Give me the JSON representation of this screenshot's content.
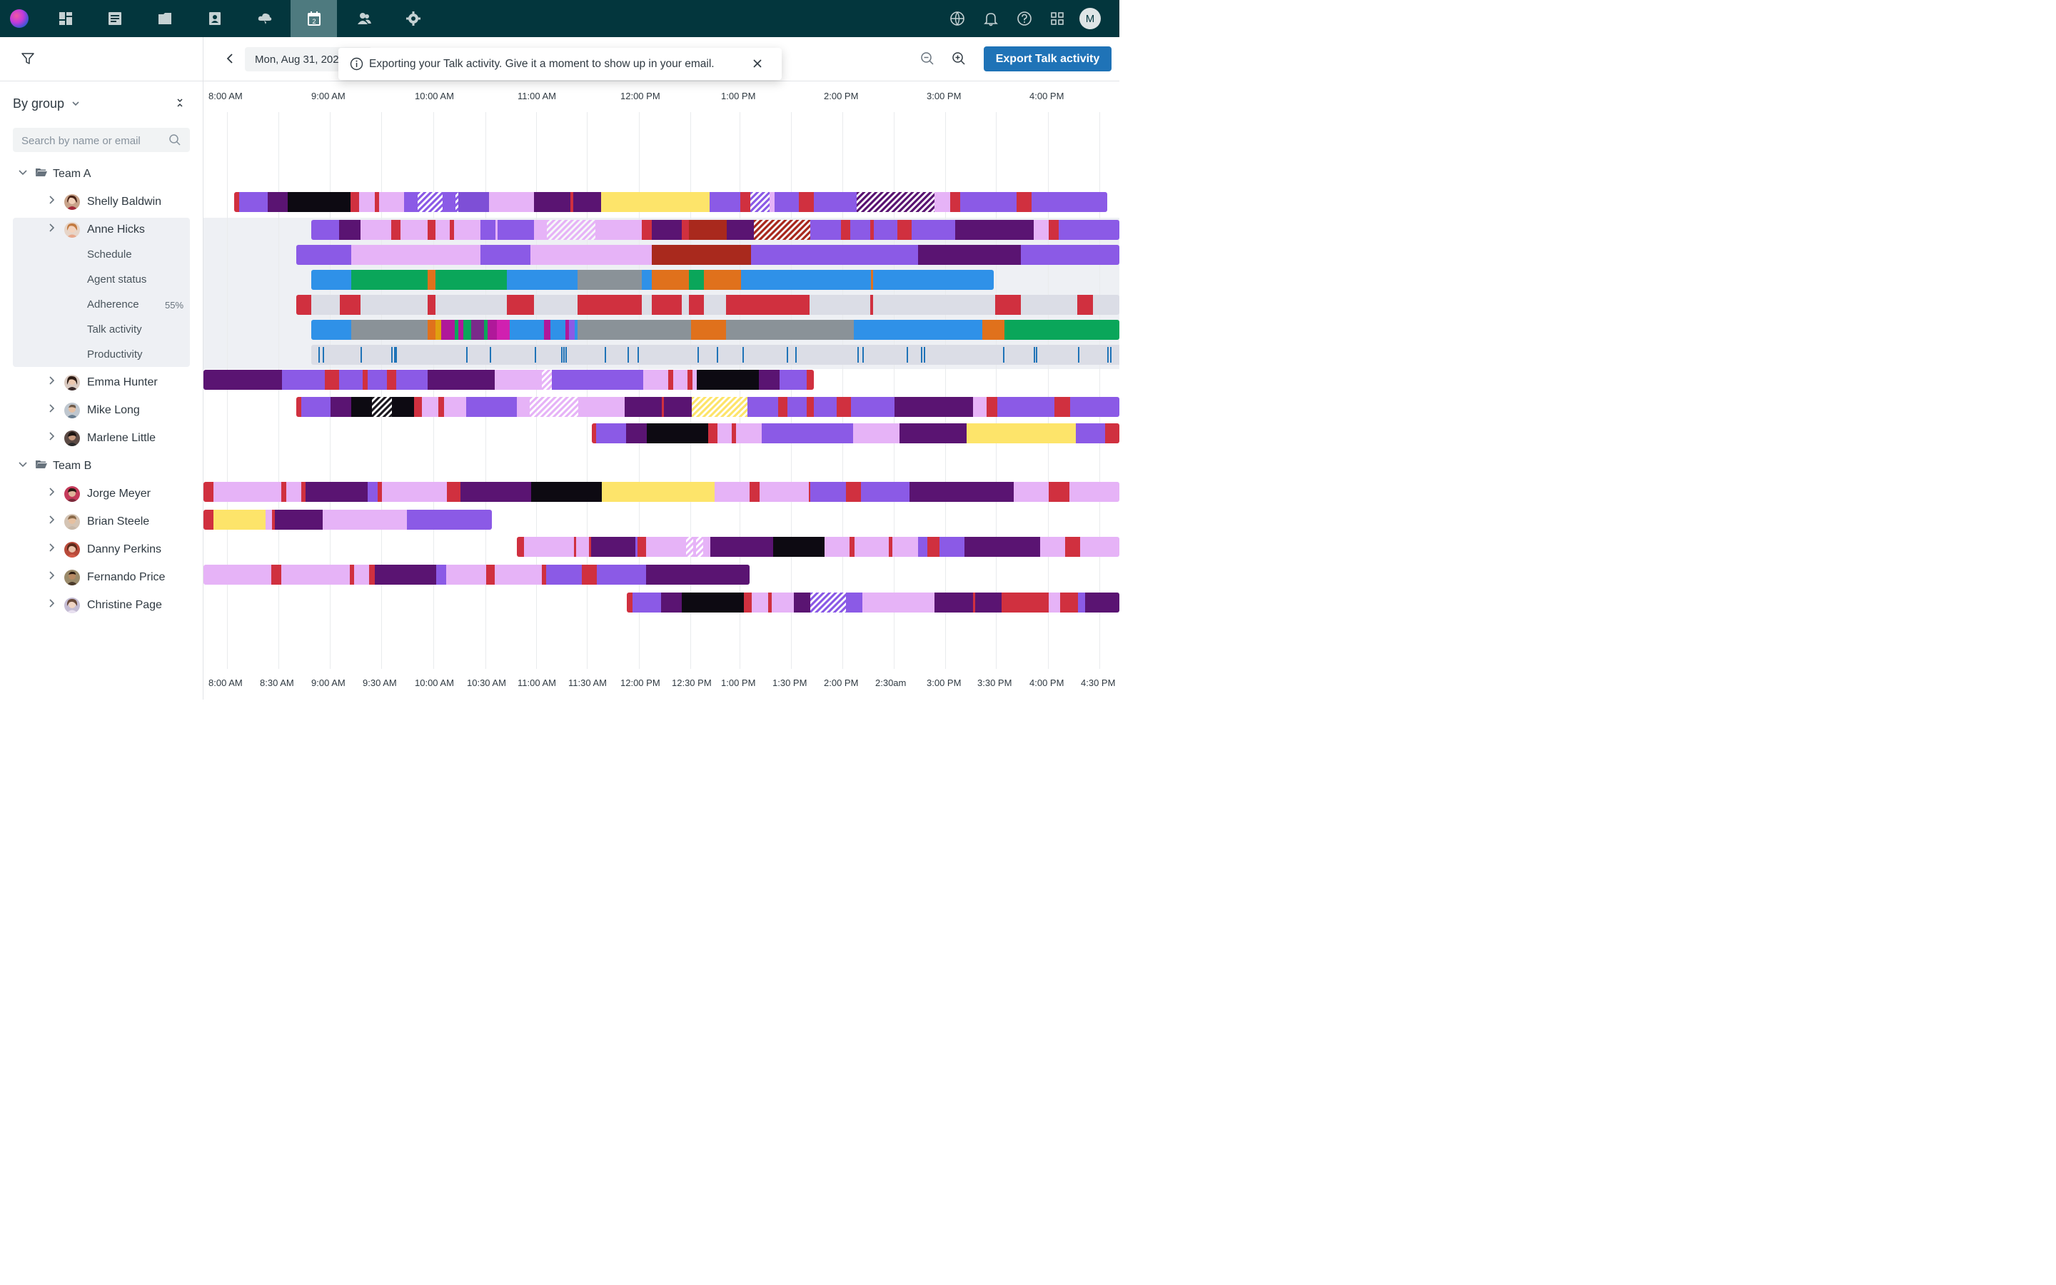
{
  "nav": {
    "items": [
      "dashboard",
      "tickets",
      "folder",
      "contacts",
      "cloud",
      "calendar",
      "people",
      "settings"
    ],
    "active": "calendar",
    "right": [
      "globe",
      "bell",
      "help",
      "apps"
    ],
    "avatar": "M"
  },
  "sidebar": {
    "group_by": "By group",
    "search_placeholder": "Search by name or email",
    "teams": [
      {
        "name": "Team A",
        "agents": [
          "Shelly Baldwin",
          "Anne Hicks",
          "Emma Hunter",
          "Mike Long",
          "Marlene Little"
        ]
      },
      {
        "name": "Team B",
        "agents": [
          "Jorge Meyer",
          "Brian Steele",
          "Danny Perkins",
          "Fernando Price",
          "Christine Page"
        ]
      }
    ],
    "expanded_agent": {
      "name": "Anne Hicks",
      "items": [
        "Schedule",
        "Agent status",
        "Adherence",
        "Talk activity",
        "Productivity"
      ],
      "adherence_value": "55%"
    }
  },
  "toolbar": {
    "date": "Mon, Aug 31, 2020",
    "export_label": "Export Talk activity"
  },
  "toast": {
    "message": "Exporting your Talk activity. Give it a moment to show up in your email."
  },
  "timeline": {
    "top_hours": [
      "8:00 AM",
      "9:00 AM",
      "10:00 AM",
      "11:00 AM",
      "12:00 PM",
      "1:00 PM",
      "2:00 PM",
      "3:00 PM",
      "4:00 PM"
    ],
    "bottom_labels": [
      "8:00 AM",
      "8:30 AM",
      "9:00 AM",
      "9:30 AM",
      "10:00 AM",
      "10:30 AM",
      "11:00 AM",
      "11:30 AM",
      "12:00 PM",
      "12:30 PM",
      "1:00 PM",
      "1:30 PM",
      "2:00 PM",
      "2:30am",
      "3:00 PM",
      "3:30 PM",
      "4:00 PM",
      "4:30 PM"
    ]
  },
  "colors": {
    "brand_dark": "#03363d",
    "nav_active": "#4e7a7f",
    "primary_button": "#1f73b7",
    "purple": "#8b5ae6",
    "dark_purple": "#5a1472",
    "light_purple": "#e6b3f7",
    "red": "#d0303f",
    "black": "#0d0a12",
    "yellow": "#fde46a",
    "blue": "#2f91e8",
    "green": "#0aa65a",
    "gray": "#8a9298",
    "orange": "#e0711c",
    "light_gray": "#dbdde6"
  }
}
